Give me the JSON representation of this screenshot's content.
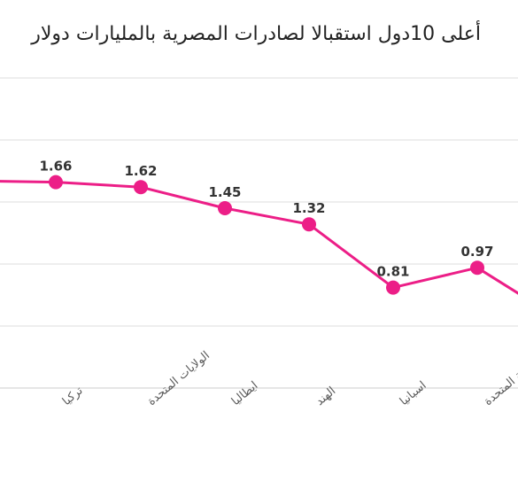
{
  "chart_data": {
    "type": "line",
    "title": "أعلى 10دول استقبالا لصادرات المصرية بالمليارات دولار",
    "categories": [
      "",
      "تركيا",
      "الولايات المتحدة",
      "ايطاليا",
      "الهند",
      "اسبانيا",
      "المملكة المتحدة",
      ""
    ],
    "values": [
      1.67,
      1.66,
      1.62,
      1.45,
      1.32,
      0.81,
      0.97,
      0.72
    ],
    "labels": [
      "",
      "1.66",
      "1.62",
      "1.45",
      "1.32",
      "0.81",
      "0.97",
      ""
    ],
    "ylim": [
      0,
      2.5
    ],
    "grid": true,
    "colors": {
      "line": "#ec1e87",
      "grid": "#e4e4e4",
      "axis": "#dddddd",
      "text": "#5a5a5a",
      "label": "#333333"
    }
  }
}
